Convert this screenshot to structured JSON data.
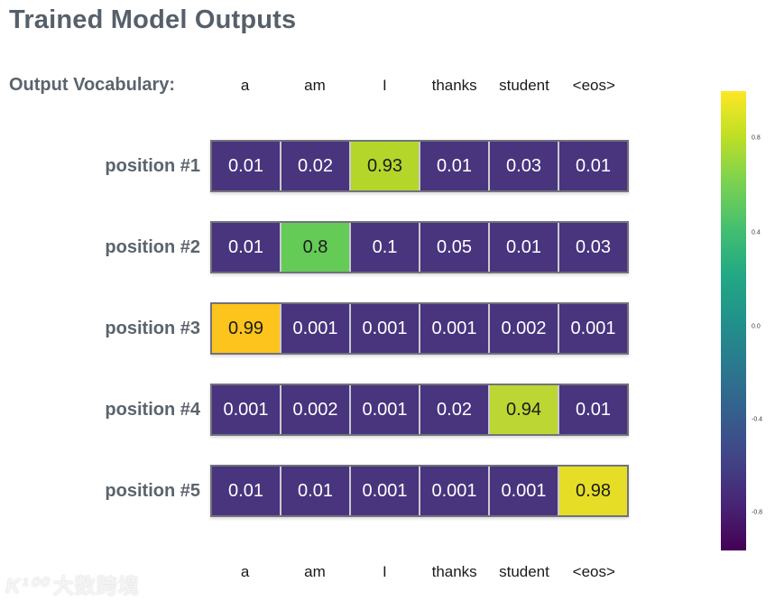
{
  "title": "Trained Model Outputs",
  "vocab_header": {
    "label": "Output Vocabulary:",
    "terms": [
      "a",
      "am",
      "I",
      "thanks",
      "student",
      "<eos>"
    ]
  },
  "footer_terms": [
    "a",
    "am",
    "I",
    "thanks",
    "student",
    "<eos>"
  ],
  "heatmap": {
    "rows": [
      {
        "label": "position #1",
        "values": [
          "0.01",
          "0.02",
          "0.93",
          "0.01",
          "0.03",
          "0.01"
        ],
        "cell_colors": [
          "#49347e",
          "#49347e",
          "#b4d62b",
          "#49347e",
          "#49347e",
          "#49347e"
        ],
        "text_colors": [
          "#ffffff",
          "#ffffff",
          "#1b1b1b",
          "#ffffff",
          "#ffffff",
          "#ffffff"
        ]
      },
      {
        "label": "position #2",
        "values": [
          "0.01",
          "0.8",
          "0.1",
          "0.05",
          "0.01",
          "0.03"
        ],
        "cell_colors": [
          "#49347e",
          "#64cb57",
          "#49347e",
          "#49347e",
          "#49347e",
          "#49347e"
        ],
        "text_colors": [
          "#ffffff",
          "#1b1b1b",
          "#ffffff",
          "#ffffff",
          "#ffffff",
          "#ffffff"
        ]
      },
      {
        "label": "position #3",
        "values": [
          "0.99",
          "0.001",
          "0.001",
          "0.001",
          "0.002",
          "0.001"
        ],
        "cell_colors": [
          "#fcc41d",
          "#49347e",
          "#49347e",
          "#49347e",
          "#49347e",
          "#49347e"
        ],
        "text_colors": [
          "#1b1b1b",
          "#ffffff",
          "#ffffff",
          "#ffffff",
          "#ffffff",
          "#ffffff"
        ]
      },
      {
        "label": "position #4",
        "values": [
          "0.001",
          "0.002",
          "0.001",
          "0.02",
          "0.94",
          "0.01"
        ],
        "cell_colors": [
          "#49347e",
          "#49347e",
          "#49347e",
          "#49347e",
          "#bcd733",
          "#49347e"
        ],
        "text_colors": [
          "#ffffff",
          "#ffffff",
          "#ffffff",
          "#ffffff",
          "#1b1b1b",
          "#ffffff"
        ]
      },
      {
        "label": "position #5",
        "values": [
          "0.01",
          "0.01",
          "0.001",
          "0.001",
          "0.001",
          "0.98"
        ],
        "cell_colors": [
          "#49347e",
          "#49347e",
          "#49347e",
          "#49347e",
          "#49347e",
          "#e6de26"
        ],
        "text_colors": [
          "#ffffff",
          "#ffffff",
          "#ffffff",
          "#ffffff",
          "#ffffff",
          "#1b1b1b"
        ]
      }
    ]
  },
  "colorbar": {
    "tick_labels": [
      "0.8",
      "0.4",
      "0.0",
      "-0.4",
      "-0.8"
    ],
    "gradient_stops": [
      "#fde725",
      "#bddf26",
      "#7ad151",
      "#44bf70",
      "#22a884",
      "#21918c",
      "#2a788e",
      "#355f8d",
      "#414487",
      "#482475",
      "#440154"
    ]
  },
  "watermark": {
    "logo": "K¹⁰⁰",
    "text": "大数跨境"
  },
  "theme": {
    "title_color": "#56606a",
    "label_color": "#5b646e",
    "purple_cell": "#49347e",
    "row_border": "#72727b",
    "cell_divider": "#c9c9cf"
  },
  "chart_data": {
    "type": "heatmap",
    "title": "Trained Model Outputs",
    "columns": [
      "a",
      "am",
      "I",
      "thanks",
      "student",
      "<eos>"
    ],
    "row_labels": [
      "position #1",
      "position #2",
      "position #3",
      "position #4",
      "position #5"
    ],
    "values": [
      [
        0.01,
        0.02,
        0.93,
        0.01,
        0.03,
        0.01
      ],
      [
        0.01,
        0.8,
        0.1,
        0.05,
        0.01,
        0.03
      ],
      [
        0.99,
        0.001,
        0.001,
        0.001,
        0.002,
        0.001
      ],
      [
        0.001,
        0.002,
        0.001,
        0.02,
        0.94,
        0.01
      ],
      [
        0.01,
        0.01,
        0.001,
        0.001,
        0.001,
        0.98
      ]
    ],
    "colormap": "viridis",
    "colorbar_ticks": [
      0.8,
      0.4,
      0.0,
      -0.4,
      -0.8
    ],
    "colorbar_range": [
      -1,
      1
    ],
    "legend_position": "right",
    "grid": false
  }
}
